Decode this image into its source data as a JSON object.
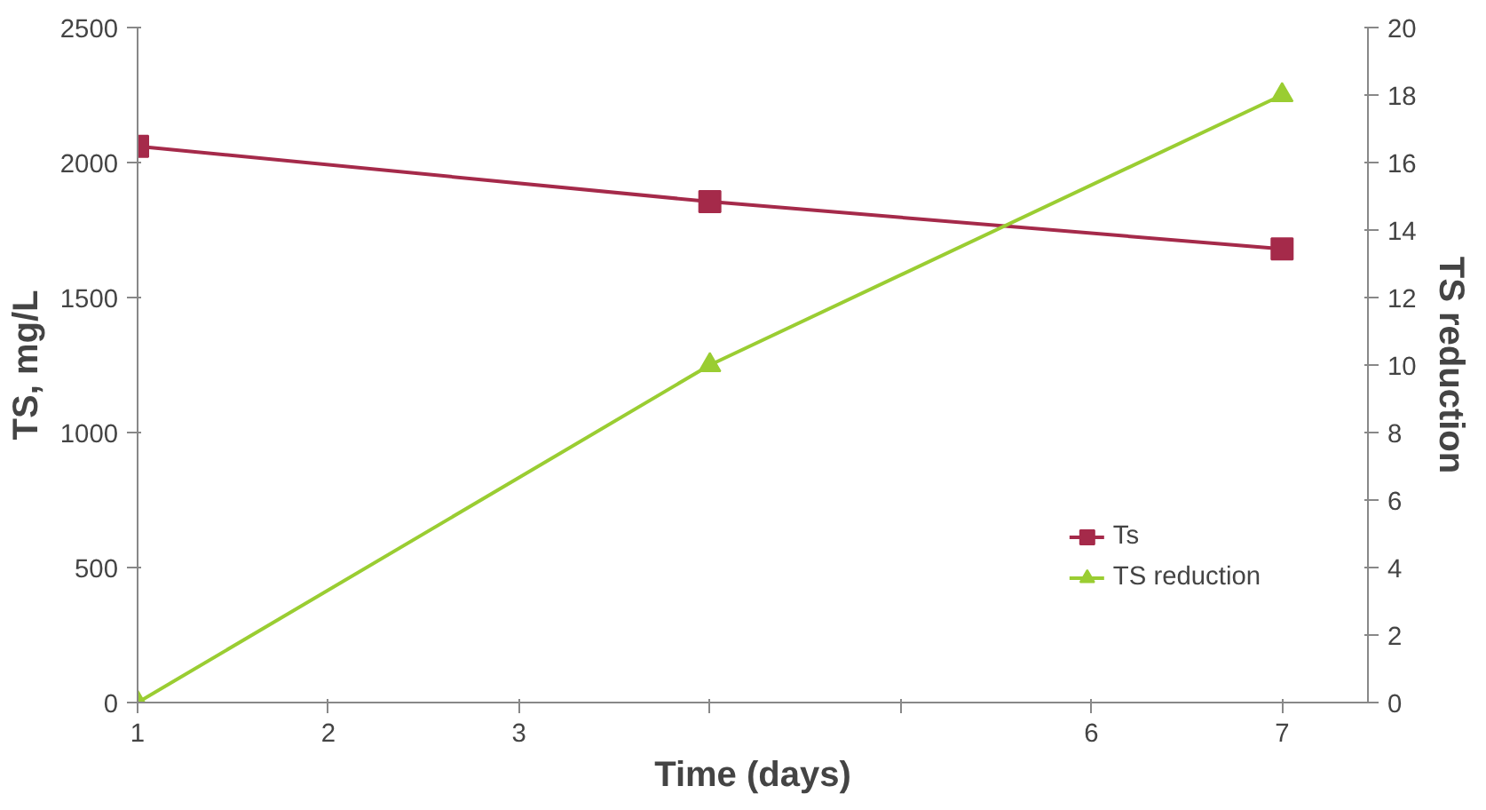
{
  "chart_data": {
    "type": "line",
    "xlabel": "Time (days)",
    "ylabel": "TS, mg/L",
    "y2label": "TS reduction",
    "x": [
      1,
      4,
      7
    ],
    "xlim": [
      1,
      7.45
    ],
    "xticks": [
      1,
      2,
      3,
      {
        "value": 4,
        "label": null
      },
      {
        "value": 5,
        "label": null
      },
      6,
      7
    ],
    "ylim": [
      0,
      2500
    ],
    "yticks": [
      0,
      500,
      1000,
      1500,
      2000,
      2500
    ],
    "y2lim": [
      0,
      20
    ],
    "y2ticks": [
      0,
      2,
      4,
      6,
      8,
      10,
      12,
      14,
      16,
      18,
      20
    ],
    "series": [
      {
        "name": "Ts",
        "color": "#a52a4a",
        "values": [
          2060,
          1855,
          1680
        ],
        "marker": "square"
      },
      {
        "name": "TS reduction",
        "color": "#9acd32",
        "values": [
          0,
          10,
          18
        ],
        "axis": "y2",
        "marker": "triangle"
      }
    ],
    "grid": false,
    "legend": "bottom right",
    "line_style": "solid"
  }
}
